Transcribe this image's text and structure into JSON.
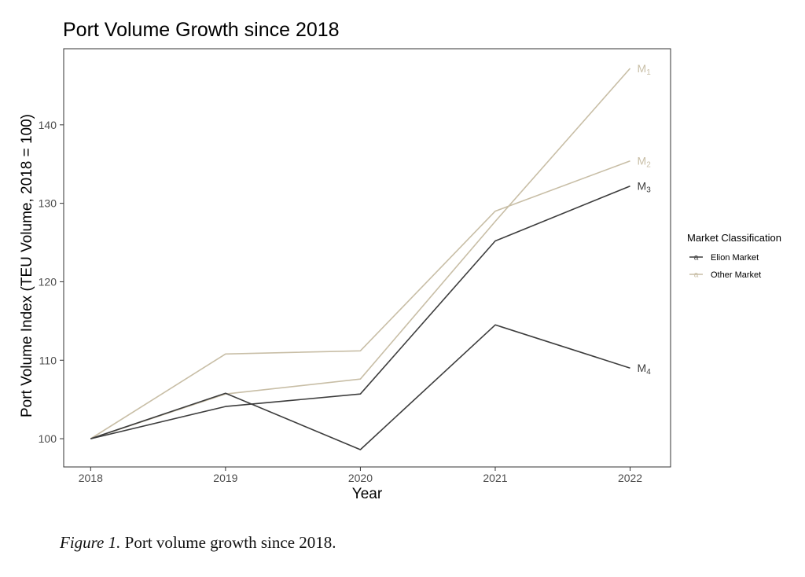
{
  "chart_data": {
    "type": "line",
    "title": "Port Volume Growth since 2018",
    "xlabel": "Year",
    "ylabel": "Port Volume Index (TEU Volume, 2018 = 100)",
    "x": [
      2018,
      2019,
      2020,
      2021,
      2022
    ],
    "x_ticks": [
      "2018",
      "2019",
      "2020",
      "2021",
      "2022"
    ],
    "y_ticks": [
      100,
      110,
      120,
      130,
      140
    ],
    "xlim": [
      2017.8,
      2022.3
    ],
    "ylim": [
      96.4,
      149.7
    ],
    "grid": false,
    "legend": {
      "title": "Market Classification",
      "placement": "right",
      "entries": [
        {
          "label": "Elion Market",
          "color": "#3d3d3d"
        },
        {
          "label": "Other Market",
          "color": "#c8bea6"
        }
      ]
    },
    "series": [
      {
        "label": "M",
        "sub": "1",
        "group": "Other Market",
        "color": "#c8bea6",
        "values": [
          100,
          105.7,
          107.6,
          127.7,
          147.2
        ]
      },
      {
        "label": "M",
        "sub": "2",
        "group": "Other Market",
        "color": "#c8bea6",
        "values": [
          100,
          110.8,
          111.2,
          129.0,
          135.4
        ]
      },
      {
        "label": "M",
        "sub": "3",
        "group": "Elion Market",
        "color": "#3d3d3d",
        "values": [
          100,
          104.1,
          105.7,
          125.2,
          132.2
        ]
      },
      {
        "label": "M",
        "sub": "4",
        "group": "Elion Market",
        "color": "#3d3d3d",
        "values": [
          100,
          105.8,
          98.6,
          114.5,
          109.0
        ]
      }
    ]
  },
  "caption": {
    "label": "Figure 1.",
    "text": " Port volume growth since 2018."
  }
}
